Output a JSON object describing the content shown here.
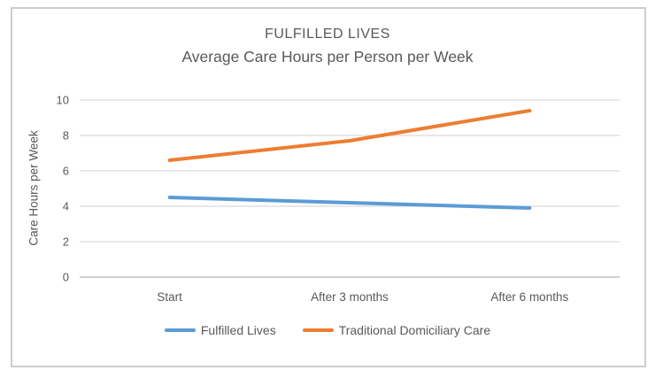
{
  "frame": {
    "border_color": "#cdcdcd",
    "background": "#ffffff"
  },
  "chart_data": {
    "type": "line",
    "title": "FULFILLED LIVES",
    "subtitle": "Average Care Hours per Person per Week",
    "ylabel": "Care Hours per Week",
    "xlabel": "",
    "categories": [
      "Start",
      "After 3 months",
      "After 6 months"
    ],
    "series": [
      {
        "name": "Fulfilled Lives",
        "values": [
          4.5,
          4.2,
          3.9
        ],
        "color": "#5B9BD5"
      },
      {
        "name": "Traditional Domiciliary Care",
        "values": [
          6.6,
          7.7,
          9.4
        ],
        "color": "#ED7D31"
      }
    ],
    "ylim": [
      0,
      10
    ],
    "ytick_step": 2,
    "yticks": [
      0,
      2,
      4,
      6,
      8,
      10
    ],
    "grid": true,
    "legend_position": "bottom",
    "colors": {
      "gridline": "#D9D9D9",
      "axis_line": "#BFBFBF",
      "text": "#595959"
    }
  }
}
